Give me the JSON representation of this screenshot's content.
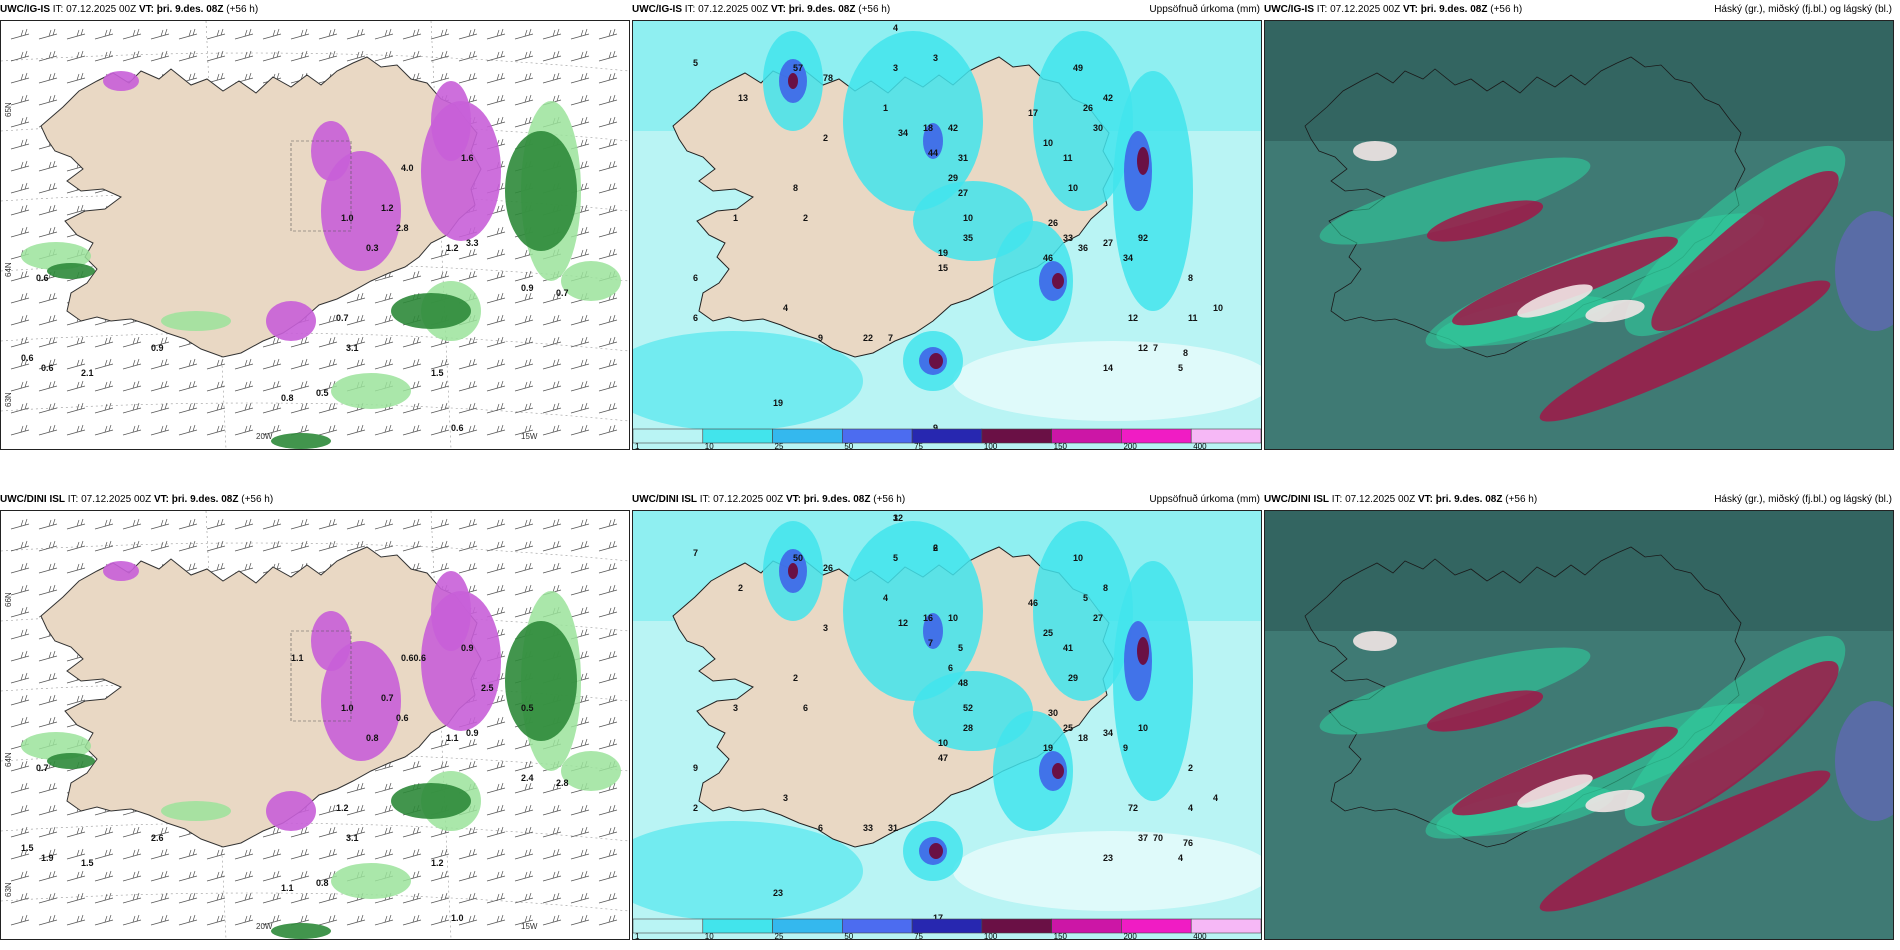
{
  "panels": [
    {
      "id": "p1",
      "run": "UWC/IG-IS",
      "it": "IT: 07.12.2025 00Z",
      "vt_label": "VT:",
      "vt": "þri. 9.des. 08Z",
      "lead": "(+56 h)",
      "right_title": "",
      "type": "wind",
      "values": [
        "0.6",
        "0.6",
        "0.6",
        "2.1",
        "0.9",
        "0.7",
        "0.5",
        "0.6",
        "0.9",
        "0.7",
        "1.6",
        "1.2",
        "0.3",
        "2.8",
        "1.2",
        "3.3",
        "4.0",
        "3.1",
        "1.5",
        "0.8",
        "1.0"
      ],
      "ticks": [
        "20W",
        "15W",
        "65N",
        "64N",
        "63N"
      ]
    },
    {
      "id": "p2",
      "run": "UWC/IG-IS",
      "it": "IT: 07.12.2025 00Z",
      "vt_label": "VT:",
      "vt": "þri. 9.des. 08Z",
      "lead": "(+56 h)",
      "right_title": "Uppsöfnuð úrkoma (mm)",
      "type": "precip",
      "values": [
        "4",
        "3",
        "5",
        "3",
        "13",
        "1",
        "2",
        "8",
        "1",
        "6",
        "6",
        "2",
        "4",
        "9",
        "7",
        "22",
        "19",
        "9",
        "78",
        "57",
        "34",
        "18",
        "42",
        "44",
        "31",
        "29",
        "27",
        "49",
        "42",
        "26",
        "30",
        "11",
        "17",
        "10",
        "10",
        "26",
        "33",
        "10",
        "35",
        "46",
        "36",
        "19",
        "15",
        "27",
        "34",
        "92",
        "14",
        "12",
        "12",
        "8",
        "7",
        "5",
        "11",
        "10",
        "8"
      ],
      "colorbar": [
        "1",
        "10",
        "25",
        "50",
        "75",
        "100",
        "150",
        "200",
        "400"
      ]
    },
    {
      "id": "p3",
      "run": "UWC/IG-IS",
      "it": "IT: 07.12.2025 00Z",
      "vt_label": "VT:",
      "vt": "þri. 9.des. 08Z",
      "lead": "(+56 h)",
      "right_title": "Háský (gr.), miðský (fj.bl.) og lágský (bl.)",
      "type": "cloud"
    },
    {
      "id": "p4",
      "run": "UWC/DINI ISL",
      "it": "IT: 07.12.2025 00Z",
      "vt_label": "VT:",
      "vt": "þri. 9.des. 08Z",
      "lead": "(+56 h)",
      "right_title": "",
      "type": "wind",
      "values": [
        "0.7",
        "1.5",
        "1.9",
        "1.5",
        "2.6",
        "1.2",
        "0.8",
        "1.0",
        "2.4",
        "2.8",
        "0.9",
        "0.7",
        "0.8",
        "0.6",
        "1.1",
        "0.9",
        "0.60.6",
        "3.1",
        "1.2",
        "1.1",
        "1.0",
        "1.1",
        "2.5",
        "0.5"
      ],
      "ticks": [
        "20W",
        "15W",
        "66N",
        "64N",
        "63N"
      ]
    },
    {
      "id": "p5",
      "run": "UWC/DINI ISL",
      "it": "IT: 07.12.2025 00Z",
      "vt_label": "VT:",
      "vt": "þri. 9.des. 08Z",
      "lead": "(+56 h)",
      "right_title": "Uppsöfnuð úrkoma (mm)",
      "type": "precip",
      "values": [
        "12",
        "6",
        "7",
        "5",
        "2",
        "4",
        "3",
        "2",
        "3",
        "9",
        "2",
        "6",
        "3",
        "6",
        "31",
        "33",
        "23",
        "17",
        "26",
        "50",
        "12",
        "16",
        "10",
        "7",
        "5",
        "6",
        "48",
        "10",
        "8",
        "5",
        "27",
        "41",
        "46",
        "25",
        "29",
        "30",
        "25",
        "52",
        "28",
        "19",
        "18",
        "10",
        "47",
        "34",
        "9",
        "10",
        "23",
        "37",
        "72",
        "76",
        "70",
        "4",
        "4",
        "4",
        "2",
        "3",
        "2"
      ],
      "colorbar": [
        "1",
        "10",
        "25",
        "50",
        "75",
        "100",
        "150",
        "200",
        "400"
      ]
    },
    {
      "id": "p6",
      "run": "UWC/DINI ISL",
      "it": "IT: 07.12.2025 00Z",
      "vt_label": "VT:",
      "vt": "þri. 9.des. 08Z",
      "lead": "(+56 h)",
      "right_title": "Háský (gr.), miðský (fj.bl.) og lágský (bl.)",
      "type": "cloud"
    }
  ],
  "colors": {
    "land": "#e9d8c4",
    "sea_white": "#ffffff",
    "precip_pale": "#b9f4f4",
    "precip_cyan": "#42e4ec",
    "precip_blue": "#34b8ee",
    "precip_deep": "#3f66e8",
    "precip_navy": "#2727b0",
    "precip_maroon": "#6a1045",
    "precip_magenta": "#cc16a6",
    "wind_purple": "#c85fd8",
    "wind_green": "#2e8a3a",
    "cloud_dark": "#2f5c5a",
    "cloud_mid": "#3f7a74",
    "cloud_green": "#2ed4a0",
    "cloud_red": "#a01848",
    "cloud_white": "#f2e6e6"
  }
}
